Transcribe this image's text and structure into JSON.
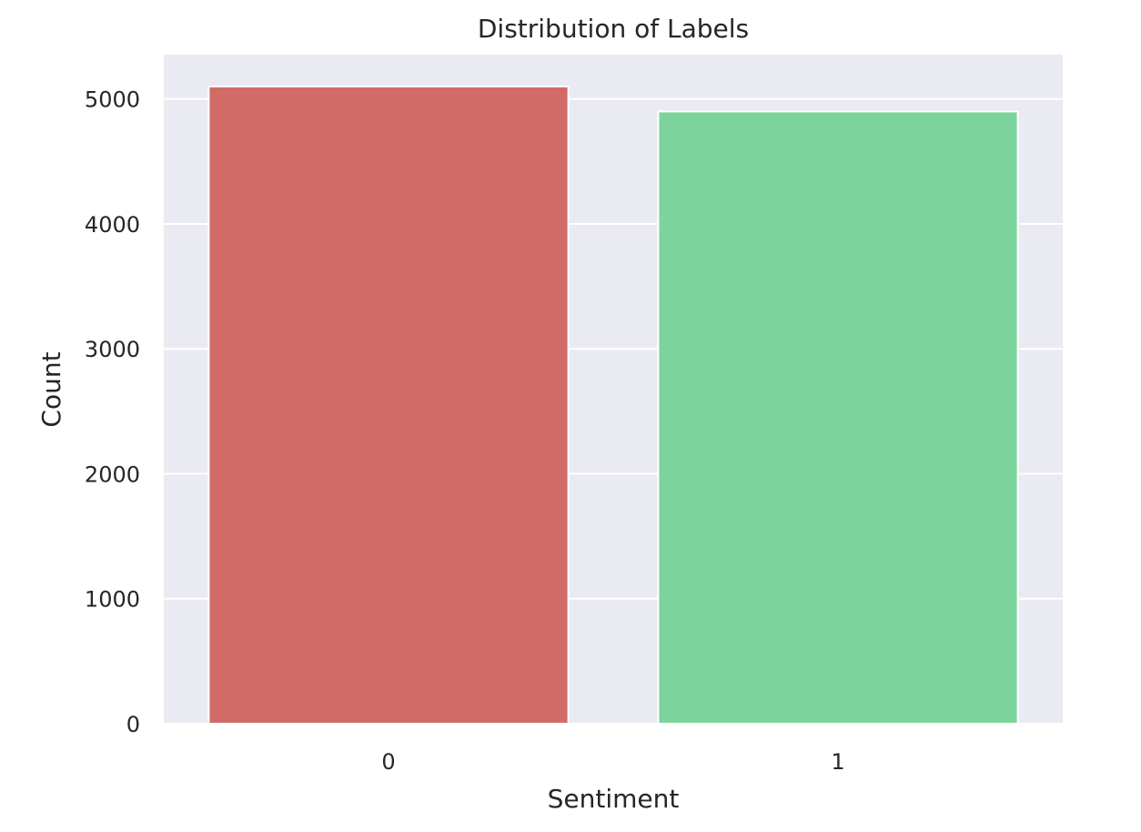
{
  "chart_data": {
    "type": "bar",
    "title": "Distribution of Labels",
    "xlabel": "Sentiment",
    "ylabel": "Count",
    "categories": [
      "0",
      "1"
    ],
    "values": [
      5100,
      4900
    ],
    "yticks": [
      "0",
      "1000",
      "2000",
      "3000",
      "4000",
      "5000"
    ],
    "ylim": [
      0,
      5355
    ],
    "grid": true,
    "colors": {
      "plot_background": "#EAEAF2",
      "grid": "#FFFFFF",
      "bars": [
        "#D16B68",
        "#7CD49C"
      ],
      "text": "#262626"
    }
  }
}
